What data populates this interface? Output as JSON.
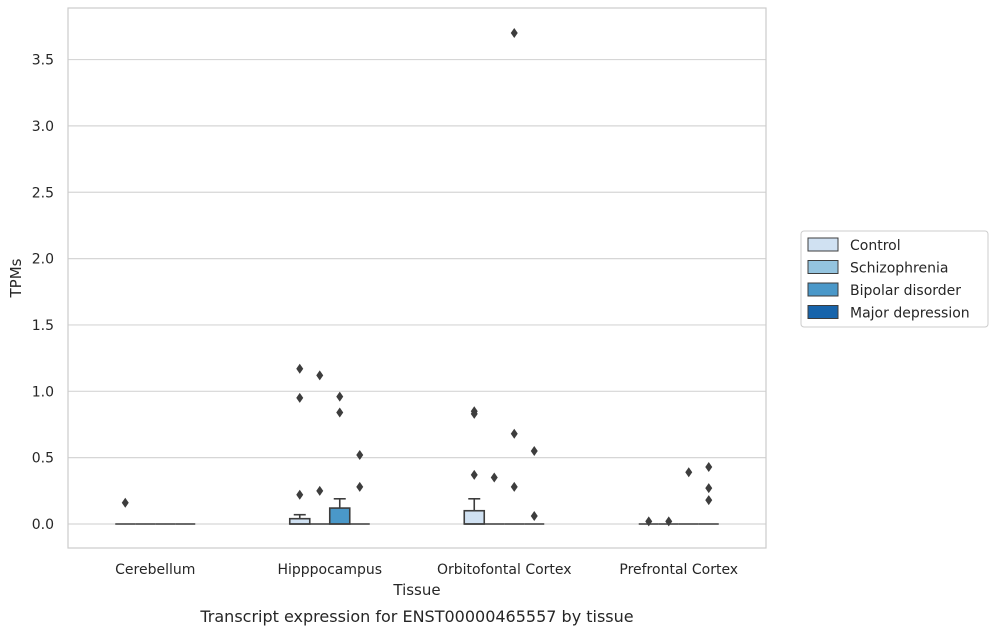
{
  "chart_data": {
    "type": "box",
    "xlabel": "Tissue",
    "ylabel": "TPMs",
    "caption": "Transcript expression for ENST00000465557 by tissue",
    "ylim": [
      -0.18,
      3.88
    ],
    "yticks": [
      "0.0",
      "0.5",
      "1.0",
      "1.5",
      "2.0",
      "2.5",
      "3.0",
      "3.5"
    ],
    "ytick_values": [
      0,
      0.5,
      1.0,
      1.5,
      2.0,
      2.5,
      3.0,
      3.5
    ],
    "grid": true,
    "legend_position": "right",
    "categories": [
      "Cerebellum",
      "Hipppocampus",
      "Orbitofontal Cortex",
      "Prefrontal Cortex"
    ],
    "series": [
      {
        "name": "Control",
        "color": "#d0e1f2",
        "boxes": [
          {
            "q1": 0,
            "median": 0,
            "q3": 0,
            "whisker_low": 0,
            "whisker_high": 0,
            "outliers": [
              0.16
            ]
          },
          {
            "q1": 0,
            "median": 0,
            "q3": 0.04,
            "whisker_low": 0,
            "whisker_high": 0.07,
            "outliers": [
              1.17,
              0.95,
              0.22
            ]
          },
          {
            "q1": 0,
            "median": 0,
            "q3": 0.1,
            "whisker_low": 0,
            "whisker_high": 0.19,
            "outliers": [
              0.85,
              0.83,
              0.37
            ]
          },
          {
            "q1": 0,
            "median": 0,
            "q3": 0,
            "whisker_low": 0,
            "whisker_high": 0,
            "outliers": [
              0.02
            ]
          }
        ]
      },
      {
        "name": "Schizophrenia",
        "color": "#94c4df",
        "boxes": [
          {
            "q1": 0,
            "median": 0,
            "q3": 0,
            "whisker_low": 0,
            "whisker_high": 0,
            "outliers": []
          },
          {
            "q1": 0,
            "median": 0,
            "q3": 0,
            "whisker_low": 0,
            "whisker_high": 0,
            "outliers": [
              1.12,
              0.25
            ]
          },
          {
            "q1": 0,
            "median": 0,
            "q3": 0,
            "whisker_low": 0,
            "whisker_high": 0,
            "outliers": [
              0.35
            ]
          },
          {
            "q1": 0,
            "median": 0,
            "q3": 0,
            "whisker_low": 0,
            "whisker_high": 0,
            "outliers": [
              0.02
            ]
          }
        ]
      },
      {
        "name": "Bipolar disorder",
        "color": "#4a98c9",
        "boxes": [
          {
            "q1": 0,
            "median": 0,
            "q3": 0,
            "whisker_low": 0,
            "whisker_high": 0,
            "outliers": []
          },
          {
            "q1": 0,
            "median": 0,
            "q3": 0.12,
            "whisker_low": 0,
            "whisker_high": 0.19,
            "outliers": [
              0.96,
              0.84
            ]
          },
          {
            "q1": 0,
            "median": 0,
            "q3": 0,
            "whisker_low": 0,
            "whisker_high": 0,
            "outliers": [
              3.7,
              0.68,
              0.28
            ]
          },
          {
            "q1": 0,
            "median": 0,
            "q3": 0,
            "whisker_low": 0,
            "whisker_high": 0,
            "outliers": [
              0.39
            ]
          }
        ]
      },
      {
        "name": "Major depression",
        "color": "#1764ab",
        "boxes": [
          {
            "q1": 0,
            "median": 0,
            "q3": 0,
            "whisker_low": 0,
            "whisker_high": 0,
            "outliers": []
          },
          {
            "q1": 0,
            "median": 0,
            "q3": 0,
            "whisker_low": 0,
            "whisker_high": 0,
            "outliers": [
              0.52,
              0.28
            ]
          },
          {
            "q1": 0,
            "median": 0,
            "q3": 0,
            "whisker_low": 0,
            "whisker_high": 0,
            "outliers": [
              0.55,
              0.06
            ]
          },
          {
            "q1": 0,
            "median": 0,
            "q3": 0,
            "whisker_low": 0,
            "whisker_high": 0,
            "outliers": [
              0.43,
              0.27,
              0.18
            ]
          }
        ]
      }
    ]
  }
}
